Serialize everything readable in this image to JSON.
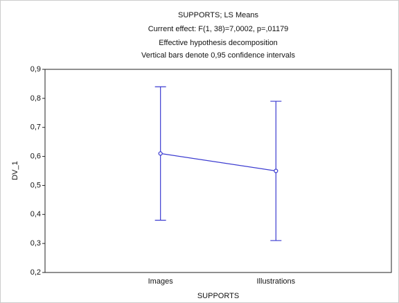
{
  "chart_data": {
    "type": "line",
    "title": "SUPPORTS; LS Means",
    "subtitle": [
      "Current effect: F(1, 38)=7,0002, p=,01179",
      "Effective hypothesis decomposition",
      "Vertical bars denote 0,95 confidence intervals"
    ],
    "xlabel": "SUPPORTS",
    "ylabel": "DV_1",
    "categories": [
      "Images",
      "Illustrations"
    ],
    "series": [
      {
        "color": "#3a3ad0",
        "values": [
          0.61,
          0.55
        ],
        "errors": [
          0.23,
          0.24
        ]
      }
    ],
    "ylim": [
      0.2,
      0.9
    ],
    "yticks": [
      {
        "value": 0.2,
        "label": "0,2"
      },
      {
        "value": 0.3,
        "label": "0,3"
      },
      {
        "value": 0.4,
        "label": "0,4"
      },
      {
        "value": 0.5,
        "label": "0,5"
      },
      {
        "value": 0.6,
        "label": "0,6"
      },
      {
        "value": 0.7,
        "label": "0,7"
      },
      {
        "value": 0.8,
        "label": "0,8"
      },
      {
        "value": 0.9,
        "label": "0,9"
      }
    ]
  }
}
